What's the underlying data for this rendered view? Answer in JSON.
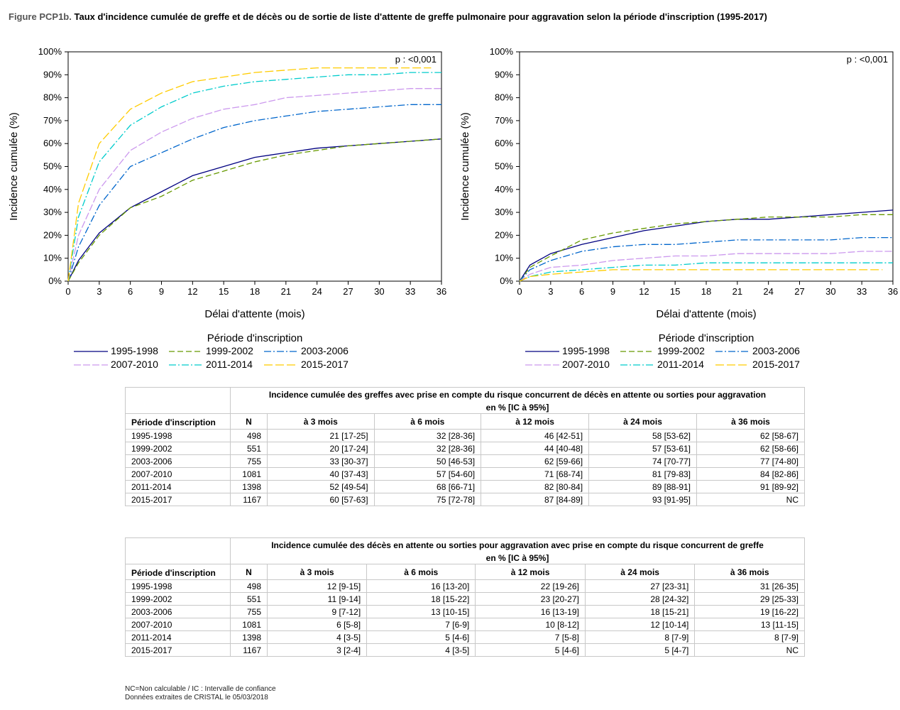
{
  "title": {
    "label": "Figure PCP1b.",
    "text": "Taux d'incidence cumulée de greffe et de décès ou de sortie de liste d'attente de greffe pulmonaire pour aggravation selon la période d'inscription (1995-2017)"
  },
  "chart_data": [
    {
      "type": "line",
      "xlabel": "Délai d'attente (mois)",
      "ylabel": "Incidence cumulée (%)",
      "annotation": "p : <0,001",
      "xlim": [
        0,
        36
      ],
      "ylim": [
        0,
        100
      ],
      "x_ticks": [
        "0",
        "3",
        "6",
        "9",
        "12",
        "15",
        "18",
        "21",
        "24",
        "27",
        "30",
        "33",
        "36"
      ],
      "y_ticks": [
        "0%",
        "10%",
        "20%",
        "30%",
        "40%",
        "50%",
        "60%",
        "70%",
        "80%",
        "90%",
        "100%"
      ],
      "legend_title": "Période d'inscription",
      "legend_position": "bottom",
      "grid": false,
      "series": [
        {
          "name": "1995-1998",
          "color": "#000080",
          "dash": "solid",
          "x": [
            0,
            1,
            3,
            6,
            9,
            12,
            15,
            18,
            21,
            24,
            27,
            30,
            33,
            36
          ],
          "y": [
            0,
            9,
            21,
            32,
            39,
            46,
            50,
            54,
            56,
            58,
            59,
            60,
            61,
            62
          ]
        },
        {
          "name": "1999-2002",
          "color": "#669900",
          "dash": "8,4",
          "x": [
            0,
            1,
            3,
            6,
            9,
            12,
            15,
            18,
            21,
            24,
            27,
            30,
            33,
            36
          ],
          "y": [
            0,
            8,
            20,
            32,
            37,
            44,
            48,
            52,
            55,
            57,
            59,
            60,
            61,
            62
          ]
        },
        {
          "name": "2003-2006",
          "color": "#0066cc",
          "dash": "10,3,2,3",
          "x": [
            0,
            1,
            3,
            6,
            9,
            12,
            15,
            18,
            21,
            24,
            27,
            30,
            33,
            36
          ],
          "y": [
            0,
            15,
            33,
            50,
            56,
            62,
            67,
            70,
            72,
            74,
            75,
            76,
            77,
            77
          ]
        },
        {
          "name": "2007-2010",
          "color": "#cc99ee",
          "dash": "10,3",
          "x": [
            0,
            1,
            3,
            6,
            9,
            12,
            15,
            18,
            21,
            24,
            27,
            30,
            33,
            36
          ],
          "y": [
            0,
            20,
            40,
            57,
            65,
            71,
            75,
            77,
            80,
            81,
            82,
            83,
            84,
            84
          ]
        },
        {
          "name": "2011-2014",
          "color": "#00cccc",
          "dash": "10,3,2,3",
          "x": [
            0,
            1,
            3,
            6,
            9,
            12,
            15,
            18,
            21,
            24,
            27,
            30,
            33,
            36
          ],
          "y": [
            0,
            28,
            52,
            68,
            76,
            82,
            85,
            87,
            88,
            89,
            90,
            90,
            91,
            91
          ]
        },
        {
          "name": "2015-2017",
          "color": "#ffcc00",
          "dash": "12,4",
          "x": [
            0,
            1,
            3,
            6,
            9,
            12,
            15,
            18,
            21,
            24,
            27,
            30,
            33,
            35
          ],
          "y": [
            0,
            34,
            60,
            75,
            82,
            87,
            89,
            91,
            92,
            93,
            93,
            93,
            93,
            93
          ]
        }
      ]
    },
    {
      "type": "line",
      "xlabel": "Délai d'attente (mois)",
      "ylabel": "Incidence cumulée (%)",
      "annotation": "p : <0,001",
      "xlim": [
        0,
        36
      ],
      "ylim": [
        0,
        100
      ],
      "x_ticks": [
        "0",
        "3",
        "6",
        "9",
        "12",
        "15",
        "18",
        "21",
        "24",
        "27",
        "30",
        "33",
        "36"
      ],
      "y_ticks": [
        "0%",
        "10%",
        "20%",
        "30%",
        "40%",
        "50%",
        "60%",
        "70%",
        "80%",
        "90%",
        "100%"
      ],
      "legend_title": "Période d'inscription",
      "legend_position": "bottom",
      "grid": false,
      "series": [
        {
          "name": "1995-1998",
          "color": "#000080",
          "dash": "solid",
          "x": [
            0,
            1,
            3,
            6,
            9,
            12,
            15,
            18,
            21,
            24,
            27,
            30,
            33,
            36
          ],
          "y": [
            0,
            7,
            12,
            16,
            19,
            22,
            24,
            26,
            27,
            27,
            28,
            29,
            30,
            31
          ]
        },
        {
          "name": "1999-2002",
          "color": "#669900",
          "dash": "8,4",
          "x": [
            0,
            1,
            3,
            6,
            9,
            12,
            15,
            18,
            21,
            24,
            27,
            30,
            33,
            36
          ],
          "y": [
            0,
            6,
            11,
            18,
            21,
            23,
            25,
            26,
            27,
            28,
            28,
            28,
            29,
            29
          ]
        },
        {
          "name": "2003-2006",
          "color": "#0066cc",
          "dash": "10,3,2,3",
          "x": [
            0,
            1,
            3,
            6,
            9,
            12,
            15,
            18,
            21,
            24,
            27,
            30,
            33,
            36
          ],
          "y": [
            0,
            5,
            9,
            13,
            15,
            16,
            16,
            17,
            18,
            18,
            18,
            18,
            19,
            19
          ]
        },
        {
          "name": "2007-2010",
          "color": "#cc99ee",
          "dash": "10,3",
          "x": [
            0,
            1,
            3,
            6,
            9,
            12,
            15,
            18,
            21,
            24,
            27,
            30,
            33,
            36
          ],
          "y": [
            0,
            3,
            6,
            7,
            9,
            10,
            11,
            11,
            12,
            12,
            12,
            12,
            13,
            13
          ]
        },
        {
          "name": "2011-2014",
          "color": "#00cccc",
          "dash": "10,3,2,3",
          "x": [
            0,
            1,
            3,
            6,
            9,
            12,
            15,
            18,
            21,
            24,
            27,
            30,
            33,
            36
          ],
          "y": [
            0,
            2,
            4,
            5,
            6,
            7,
            7,
            8,
            8,
            8,
            8,
            8,
            8,
            8
          ]
        },
        {
          "name": "2015-2017",
          "color": "#ffcc00",
          "dash": "12,4",
          "x": [
            0,
            1,
            3,
            6,
            9,
            12,
            15,
            18,
            21,
            24,
            27,
            30,
            33,
            35
          ],
          "y": [
            0,
            2,
            3,
            4,
            5,
            5,
            5,
            5,
            5,
            5,
            5,
            5,
            5,
            5
          ]
        }
      ]
    }
  ],
  "tables": [
    {
      "header": "Incidence cumulée des greffes avec prise en compte du risque concurrent de décès en attente ou sorties pour aggravation",
      "subheader": "en % [IC à 95%]",
      "period_header": "Période d'inscription",
      "n_header": "N",
      "columns": [
        "à 3 mois",
        "à 6 mois",
        "à 12 mois",
        "à 24 mois",
        "à 36 mois"
      ],
      "rows": [
        {
          "period": "1995-1998",
          "n": "498",
          "values": [
            "21 [17-25]",
            "32 [28-36]",
            "46 [42-51]",
            "58 [53-62]",
            "62 [58-67]"
          ]
        },
        {
          "period": "1999-2002",
          "n": "551",
          "values": [
            "20 [17-24]",
            "32 [28-36]",
            "44 [40-48]",
            "57 [53-61]",
            "62 [58-66]"
          ]
        },
        {
          "period": "2003-2006",
          "n": "755",
          "values": [
            "33 [30-37]",
            "50 [46-53]",
            "62 [59-66]",
            "74 [70-77]",
            "77 [74-80]"
          ]
        },
        {
          "period": "2007-2010",
          "n": "1081",
          "values": [
            "40 [37-43]",
            "57 [54-60]",
            "71 [68-74]",
            "81 [79-83]",
            "84 [82-86]"
          ]
        },
        {
          "period": "2011-2014",
          "n": "1398",
          "values": [
            "52 [49-54]",
            "68 [66-71]",
            "82 [80-84]",
            "89 [88-91]",
            "91 [89-92]"
          ]
        },
        {
          "period": "2015-2017",
          "n": "1167",
          "values": [
            "60 [57-63]",
            "75 [72-78]",
            "87 [84-89]",
            "93 [91-95]",
            "NC"
          ]
        }
      ]
    },
    {
      "header": "Incidence cumulée des décès en attente ou sorties pour aggravation avec prise en compte du risque concurrent de greffe",
      "subheader": "en % [IC à 95%]",
      "period_header": "Période d'inscription",
      "n_header": "N",
      "columns": [
        "à 3 mois",
        "à 6 mois",
        "à 12 mois",
        "à 24 mois",
        "à 36 mois"
      ],
      "rows": [
        {
          "period": "1995-1998",
          "n": "498",
          "values": [
            "12 [9-15]",
            "16 [13-20]",
            "22 [19-26]",
            "27 [23-31]",
            "31 [26-35]"
          ]
        },
        {
          "period": "1999-2002",
          "n": "551",
          "values": [
            "11 [9-14]",
            "18 [15-22]",
            "23 [20-27]",
            "28 [24-32]",
            "29 [25-33]"
          ]
        },
        {
          "period": "2003-2006",
          "n": "755",
          "values": [
            "9 [7-12]",
            "13 [10-15]",
            "16 [13-19]",
            "18 [15-21]",
            "19 [16-22]"
          ]
        },
        {
          "period": "2007-2010",
          "n": "1081",
          "values": [
            "6 [5-8]",
            "7 [6-9]",
            "10 [8-12]",
            "12 [10-14]",
            "13 [11-15]"
          ]
        },
        {
          "period": "2011-2014",
          "n": "1398",
          "values": [
            "4 [3-5]",
            "5 [4-6]",
            "7 [5-8]",
            "8 [7-9]",
            "8 [7-9]"
          ]
        },
        {
          "period": "2015-2017",
          "n": "1167",
          "values": [
            "3 [2-4]",
            "4 [3-5]",
            "5 [4-6]",
            "5 [4-7]",
            "NC"
          ]
        }
      ]
    }
  ],
  "footnotes": [
    "NC=Non calculable / IC : Intervalle de confiance",
    "Données extraites de CRISTAL le 05/03/2018"
  ]
}
